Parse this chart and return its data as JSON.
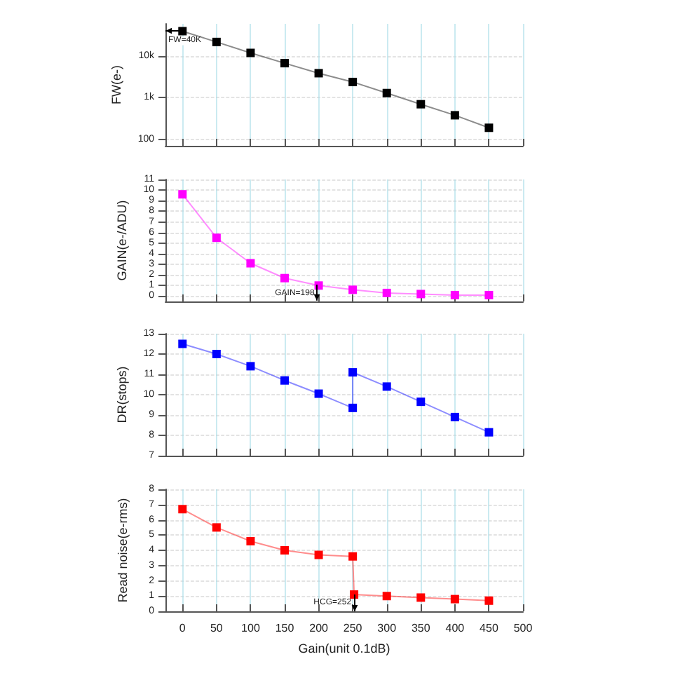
{
  "chart_data": [
    {
      "type": "line",
      "ylabel": "FW(e-)",
      "log": "y",
      "x": [
        0,
        50,
        100,
        150,
        200,
        250,
        300,
        350,
        400,
        450
      ],
      "series": [
        {
          "color": "#000000",
          "values": [
            40000,
            22000,
            12000,
            6800,
            3900,
            2400,
            1300,
            700,
            380,
            190
          ]
        }
      ],
      "xlim": [
        -25,
        500
      ],
      "xticks": [
        0,
        50,
        100,
        150,
        200,
        250,
        300,
        350,
        400,
        450,
        500
      ],
      "ylim": [
        70,
        60000
      ],
      "yticks": [
        100,
        {
          "value": 1000,
          "label": "1k"
        },
        {
          "value": 10000,
          "label": "10k"
        }
      ],
      "annotations": [
        {
          "text": "FW=40K",
          "x": 0,
          "y": 40000
        }
      ],
      "grid": true,
      "marker": "square",
      "tick_labels": "y"
    },
    {
      "type": "line",
      "ylabel": "GAIN(e-/ADU)",
      "x": [
        0,
        50,
        100,
        150,
        200,
        250,
        300,
        350,
        400,
        450
      ],
      "series": [
        {
          "color": "#ff00ff",
          "values": [
            9.6,
            5.5,
            3.1,
            1.7,
            1.0,
            0.6,
            0.3,
            0.2,
            0.1,
            0.1
          ]
        }
      ],
      "xlim": [
        -25,
        500
      ],
      "xticks": [
        0,
        50,
        100,
        150,
        200,
        250,
        300,
        350,
        400,
        450,
        500
      ],
      "ylim": [
        -0.5,
        11
      ],
      "yticks": [
        0,
        1,
        2,
        3,
        4,
        5,
        6,
        7,
        8,
        9,
        10,
        11
      ],
      "annotations": [
        {
          "text": "GAIN=198",
          "x": 198,
          "y": 1.0
        }
      ],
      "grid": true,
      "marker": "square",
      "tick_labels": "y"
    },
    {
      "type": "line",
      "ylabel": "DR(stops)",
      "x": [
        0,
        50,
        100,
        150,
        200,
        250,
        250,
        300,
        350,
        400,
        450
      ],
      "series": [
        {
          "color": "#0000ff",
          "values": [
            12.5,
            12.0,
            11.4,
            10.7,
            10.05,
            9.35,
            11.1,
            10.4,
            9.65,
            8.9,
            8.15
          ]
        }
      ],
      "xlim": [
        -25,
        500
      ],
      "xticks": [
        0,
        50,
        100,
        150,
        200,
        250,
        300,
        350,
        400,
        450,
        500
      ],
      "ylim": [
        7,
        13
      ],
      "yticks": [
        7,
        8,
        9,
        10,
        11,
        12,
        13
      ],
      "grid": true,
      "marker": "square",
      "tick_labels": "y"
    },
    {
      "type": "line",
      "ylabel": "Read noise(e-rms)",
      "xlabel": "Gain(unit 0.1dB)",
      "x": [
        0,
        50,
        100,
        150,
        200,
        250,
        252,
        300,
        350,
        400,
        450
      ],
      "series": [
        {
          "color": "#ff0000",
          "values": [
            6.7,
            5.5,
            4.6,
            4.0,
            3.7,
            3.6,
            1.1,
            1.0,
            0.9,
            0.8,
            0.7
          ]
        }
      ],
      "xlim": [
        -25,
        500
      ],
      "xticks": [
        0,
        50,
        100,
        150,
        200,
        250,
        300,
        350,
        400,
        450,
        500
      ],
      "ylim": [
        0,
        8
      ],
      "yticks": [
        0,
        1,
        2,
        3,
        4,
        5,
        6,
        7,
        8
      ],
      "annotations": [
        {
          "text": "HCG=252",
          "x": 252,
          "y": 1.1
        }
      ],
      "grid": true,
      "marker": "square"
    }
  ]
}
